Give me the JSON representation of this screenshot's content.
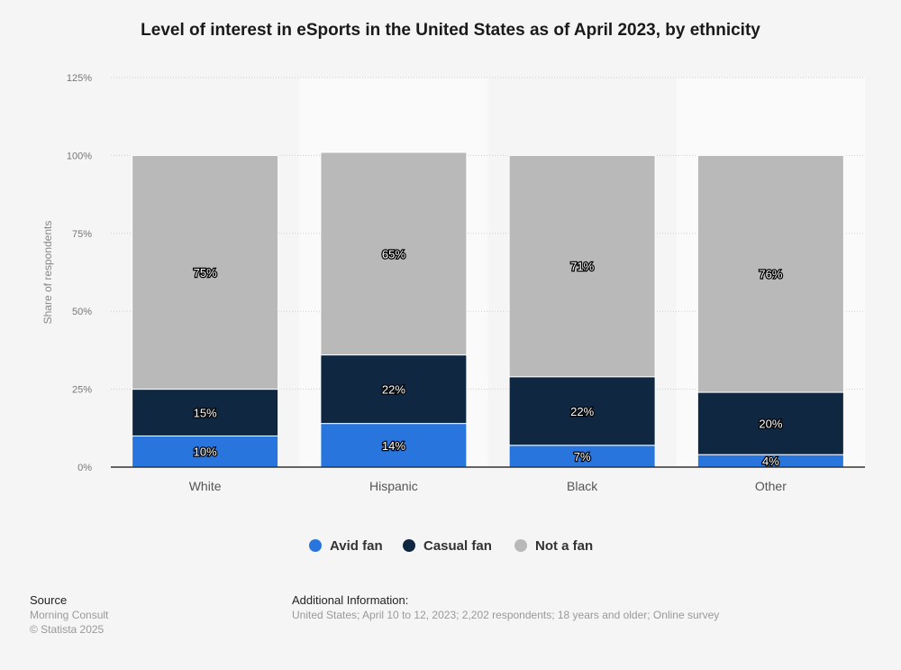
{
  "chart_data": {
    "type": "bar",
    "stacked": true,
    "title": "Level of interest in eSports in the United States as of April 2023, by ethnicity",
    "xlabel": "",
    "ylabel": "Share of respondents",
    "ylim": [
      0,
      125
    ],
    "yticks": [
      0,
      25,
      50,
      75,
      100,
      125
    ],
    "ytick_labels": [
      "0%",
      "25%",
      "50%",
      "75%",
      "100%",
      "125%"
    ],
    "grid": true,
    "legend_position": "bottom",
    "categories": [
      "White",
      "Hispanic",
      "Black",
      "Other"
    ],
    "series": [
      {
        "name": "Avid fan",
        "color": "#2876dd",
        "values": [
          10,
          14,
          7,
          4
        ],
        "labels": [
          "10%",
          "14%",
          "7%",
          "4%"
        ]
      },
      {
        "name": "Casual fan",
        "color": "#0f2740",
        "values": [
          15,
          22,
          22,
          20
        ],
        "labels": [
          "15%",
          "22%",
          "22%",
          "20%"
        ]
      },
      {
        "name": "Not a fan",
        "color": "#b9b9b9",
        "values": [
          75,
          65,
          71,
          76
        ],
        "labels": [
          "75%",
          "65%",
          "71%",
          "76%"
        ]
      }
    ]
  },
  "footer": {
    "source_heading": "Source",
    "source_name": "Morning Consult",
    "copyright": "© Statista 2025",
    "info_heading": "Additional Information:",
    "info_text": "United States; April 10 to 12, 2023; 2,202 respondents; 18 years and older; Online survey"
  }
}
